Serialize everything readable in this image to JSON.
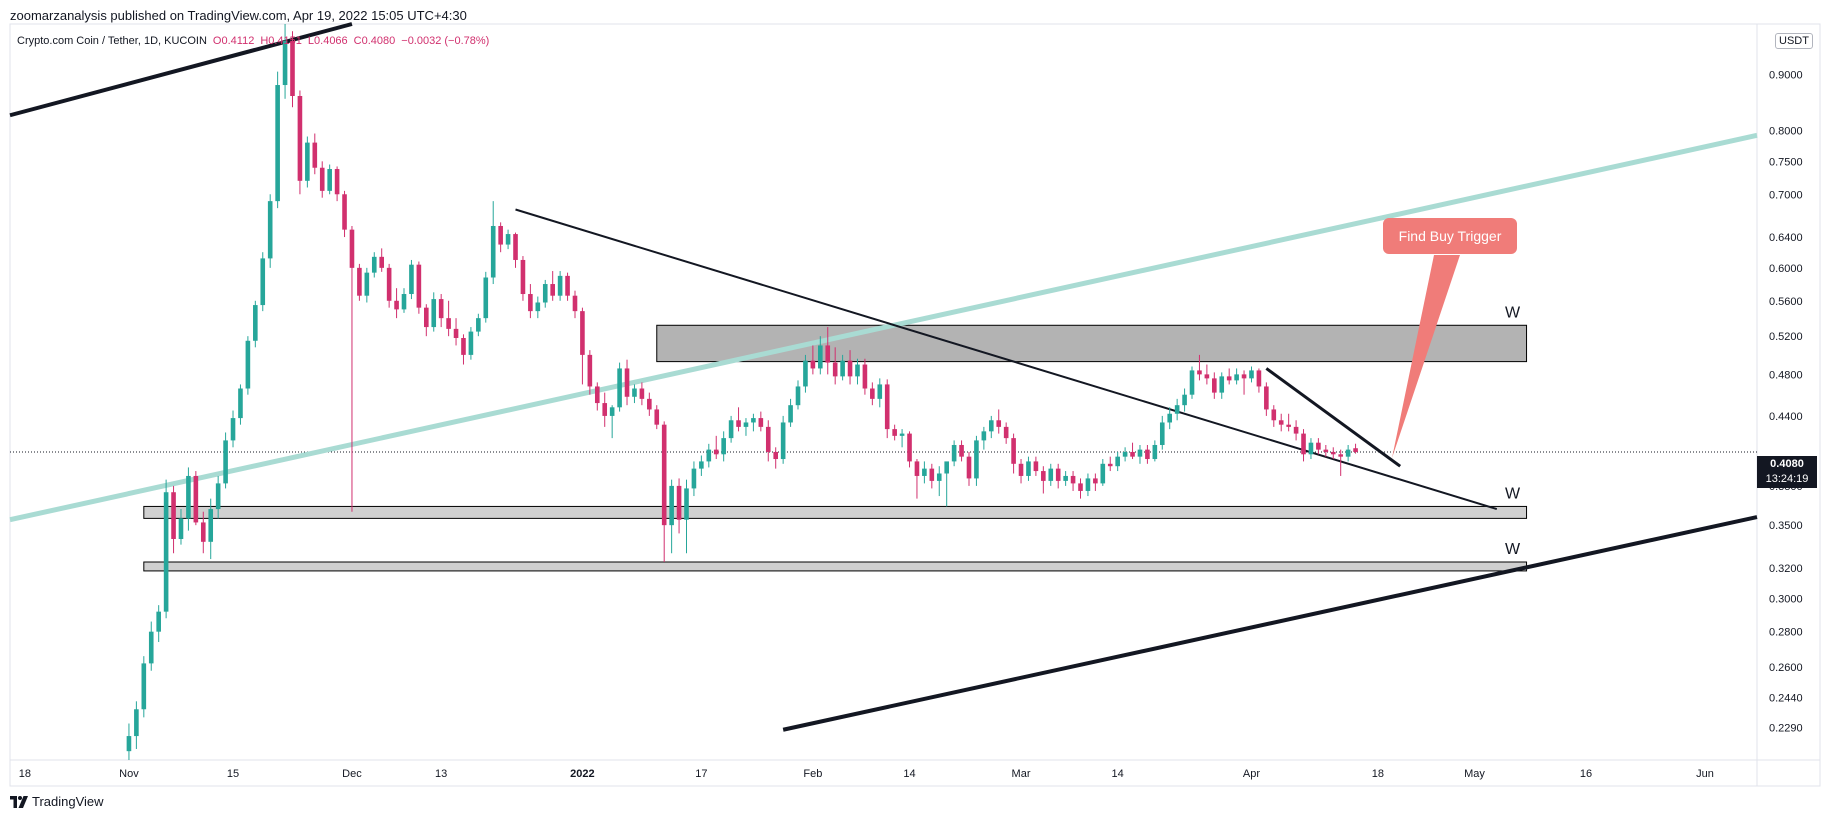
{
  "header": {
    "published_by": "zoomarzanalysis published on TradingView.com, Apr 19, 2022 15:05 UTC+4:30"
  },
  "legend": {
    "symbol": "Crypto.com Coin / Tether, 1D, KUCOIN",
    "open": "O0.4112",
    "high": "H0.4151",
    "low": "L0.4066",
    "close": "C0.4080",
    "change": "−0.0032 (−0.78%)"
  },
  "currency_badge": "USDT",
  "last_price": {
    "value": "0.4080",
    "countdown": "13:24:19"
  },
  "annotations": {
    "callout": "Find Buy Trigger",
    "zone_labels": [
      "W",
      "W",
      "W"
    ]
  },
  "footer": {
    "brand": "TradingView"
  },
  "colors": {
    "up": "#26a69a",
    "down": "#d1306e",
    "channel": "#131722",
    "teal_line": "#a9dbd3",
    "callout_bg": "#f07c79",
    "zone_fill": "#b3b3b3"
  },
  "chart_data": {
    "type": "candlestick",
    "scale": "log",
    "ylim": [
      0.214,
      1.0
    ],
    "y_ticks": [
      "0.9000",
      "0.8000",
      "0.7500",
      "0.7000",
      "0.6400",
      "0.6000",
      "0.5600",
      "0.5200",
      "0.4800",
      "0.4400",
      "0.4080",
      "0.3800",
      "0.3500",
      "0.3200",
      "0.3000",
      "0.2800",
      "0.2600",
      "0.2440",
      "0.2290"
    ],
    "x_ticks": [
      "18",
      "Nov",
      "15",
      "Dec",
      "13",
      "2022",
      "17",
      "Feb",
      "14",
      "Mar",
      "14",
      "Apr",
      "18",
      "May",
      "16",
      "Jun"
    ],
    "x_tick_dates": [
      "2021-10-18",
      "2021-11-01",
      "2021-11-15",
      "2021-12-01",
      "2021-12-13",
      "2022-01-01",
      "2022-01-17",
      "2022-02-01",
      "2022-02-14",
      "2022-03-01",
      "2022-03-14",
      "2022-04-01",
      "2022-04-18",
      "2022-05-01",
      "2022-05-16",
      "2022-06-01"
    ],
    "x_range": [
      "2021-10-16",
      "2022-06-08"
    ],
    "first_date": "2021-11-01",
    "candles": [
      {
        "o": 0.218,
        "h": 0.231,
        "l": 0.214,
        "c": 0.225
      },
      {
        "o": 0.225,
        "h": 0.242,
        "l": 0.219,
        "c": 0.238
      },
      {
        "o": 0.238,
        "h": 0.266,
        "l": 0.234,
        "c": 0.262
      },
      {
        "o": 0.262,
        "h": 0.286,
        "l": 0.258,
        "c": 0.28
      },
      {
        "o": 0.28,
        "h": 0.296,
        "l": 0.274,
        "c": 0.292
      },
      {
        "o": 0.292,
        "h": 0.385,
        "l": 0.288,
        "c": 0.375
      },
      {
        "o": 0.375,
        "h": 0.38,
        "l": 0.33,
        "c": 0.34
      },
      {
        "o": 0.34,
        "h": 0.362,
        "l": 0.336,
        "c": 0.355
      },
      {
        "o": 0.355,
        "h": 0.395,
        "l": 0.346,
        "c": 0.388
      },
      {
        "o": 0.388,
        "h": 0.392,
        "l": 0.35,
        "c": 0.352
      },
      {
        "o": 0.352,
        "h": 0.36,
        "l": 0.33,
        "c": 0.338
      },
      {
        "o": 0.338,
        "h": 0.37,
        "l": 0.326,
        "c": 0.362
      },
      {
        "o": 0.362,
        "h": 0.388,
        "l": 0.355,
        "c": 0.382
      },
      {
        "o": 0.382,
        "h": 0.425,
        "l": 0.378,
        "c": 0.418
      },
      {
        "o": 0.418,
        "h": 0.445,
        "l": 0.412,
        "c": 0.438
      },
      {
        "o": 0.438,
        "h": 0.47,
        "l": 0.432,
        "c": 0.466
      },
      {
        "o": 0.466,
        "h": 0.52,
        "l": 0.46,
        "c": 0.515
      },
      {
        "o": 0.515,
        "h": 0.56,
        "l": 0.508,
        "c": 0.555
      },
      {
        "o": 0.555,
        "h": 0.62,
        "l": 0.548,
        "c": 0.612
      },
      {
        "o": 0.612,
        "h": 0.7,
        "l": 0.6,
        "c": 0.69
      },
      {
        "o": 0.69,
        "h": 0.905,
        "l": 0.68,
        "c": 0.88
      },
      {
        "o": 0.88,
        "h": 1.0,
        "l": 0.855,
        "c": 0.965
      },
      {
        "o": 0.965,
        "h": 0.985,
        "l": 0.84,
        "c": 0.86
      },
      {
        "o": 0.86,
        "h": 0.87,
        "l": 0.7,
        "c": 0.72
      },
      {
        "o": 0.72,
        "h": 0.79,
        "l": 0.71,
        "c": 0.78
      },
      {
        "o": 0.78,
        "h": 0.795,
        "l": 0.73,
        "c": 0.74
      },
      {
        "o": 0.74,
        "h": 0.75,
        "l": 0.695,
        "c": 0.705
      },
      {
        "o": 0.705,
        "h": 0.745,
        "l": 0.7,
        "c": 0.738
      },
      {
        "o": 0.738,
        "h": 0.742,
        "l": 0.69,
        "c": 0.7
      },
      {
        "o": 0.7,
        "h": 0.705,
        "l": 0.64,
        "c": 0.65
      },
      {
        "o": 0.65,
        "h": 0.655,
        "l": 0.36,
        "c": 0.6
      },
      {
        "o": 0.6,
        "h": 0.605,
        "l": 0.56,
        "c": 0.566
      },
      {
        "o": 0.566,
        "h": 0.6,
        "l": 0.558,
        "c": 0.594
      },
      {
        "o": 0.594,
        "h": 0.62,
        "l": 0.588,
        "c": 0.614
      },
      {
        "o": 0.614,
        "h": 0.625,
        "l": 0.595,
        "c": 0.6
      },
      {
        "o": 0.6,
        "h": 0.605,
        "l": 0.552,
        "c": 0.56
      },
      {
        "o": 0.56,
        "h": 0.575,
        "l": 0.54,
        "c": 0.55
      },
      {
        "o": 0.55,
        "h": 0.575,
        "l": 0.546,
        "c": 0.568
      },
      {
        "o": 0.568,
        "h": 0.61,
        "l": 0.562,
        "c": 0.604
      },
      {
        "o": 0.604,
        "h": 0.608,
        "l": 0.545,
        "c": 0.552
      },
      {
        "o": 0.552,
        "h": 0.556,
        "l": 0.52,
        "c": 0.53
      },
      {
        "o": 0.53,
        "h": 0.57,
        "l": 0.525,
        "c": 0.562
      },
      {
        "o": 0.562,
        "h": 0.568,
        "l": 0.53,
        "c": 0.54
      },
      {
        "o": 0.54,
        "h": 0.56,
        "l": 0.52,
        "c": 0.528
      },
      {
        "o": 0.528,
        "h": 0.54,
        "l": 0.51,
        "c": 0.518
      },
      {
        "o": 0.518,
        "h": 0.522,
        "l": 0.49,
        "c": 0.5
      },
      {
        "o": 0.5,
        "h": 0.53,
        "l": 0.495,
        "c": 0.525
      },
      {
        "o": 0.525,
        "h": 0.545,
        "l": 0.52,
        "c": 0.54
      },
      {
        "o": 0.54,
        "h": 0.595,
        "l": 0.535,
        "c": 0.588
      },
      {
        "o": 0.588,
        "h": 0.69,
        "l": 0.58,
        "c": 0.655
      },
      {
        "o": 0.655,
        "h": 0.66,
        "l": 0.62,
        "c": 0.63
      },
      {
        "o": 0.63,
        "h": 0.65,
        "l": 0.624,
        "c": 0.644
      },
      {
        "o": 0.644,
        "h": 0.646,
        "l": 0.6,
        "c": 0.61
      },
      {
        "o": 0.61,
        "h": 0.615,
        "l": 0.56,
        "c": 0.568
      },
      {
        "o": 0.568,
        "h": 0.58,
        "l": 0.54,
        "c": 0.548
      },
      {
        "o": 0.548,
        "h": 0.565,
        "l": 0.54,
        "c": 0.558
      },
      {
        "o": 0.558,
        "h": 0.585,
        "l": 0.552,
        "c": 0.58
      },
      {
        "o": 0.58,
        "h": 0.596,
        "l": 0.56,
        "c": 0.566
      },
      {
        "o": 0.566,
        "h": 0.596,
        "l": 0.56,
        "c": 0.59
      },
      {
        "o": 0.59,
        "h": 0.594,
        "l": 0.56,
        "c": 0.566
      },
      {
        "o": 0.566,
        "h": 0.572,
        "l": 0.54,
        "c": 0.548
      },
      {
        "o": 0.548,
        "h": 0.552,
        "l": 0.47,
        "c": 0.5
      },
      {
        "o": 0.5,
        "h": 0.505,
        "l": 0.46,
        "c": 0.468
      },
      {
        "o": 0.468,
        "h": 0.472,
        "l": 0.445,
        "c": 0.452
      },
      {
        "o": 0.452,
        "h": 0.462,
        "l": 0.43,
        "c": 0.44
      },
      {
        "o": 0.44,
        "h": 0.45,
        "l": 0.42,
        "c": 0.448
      },
      {
        "o": 0.448,
        "h": 0.492,
        "l": 0.444,
        "c": 0.486
      },
      {
        "o": 0.486,
        "h": 0.495,
        "l": 0.45,
        "c": 0.458
      },
      {
        "o": 0.458,
        "h": 0.47,
        "l": 0.452,
        "c": 0.466
      },
      {
        "o": 0.466,
        "h": 0.472,
        "l": 0.45,
        "c": 0.456
      },
      {
        "o": 0.456,
        "h": 0.462,
        "l": 0.44,
        "c": 0.446
      },
      {
        "o": 0.446,
        "h": 0.45,
        "l": 0.428,
        "c": 0.432
      },
      {
        "o": 0.432,
        "h": 0.435,
        "l": 0.324,
        "c": 0.35
      },
      {
        "o": 0.35,
        "h": 0.385,
        "l": 0.33,
        "c": 0.38
      },
      {
        "o": 0.38,
        "h": 0.386,
        "l": 0.344,
        "c": 0.354
      },
      {
        "o": 0.354,
        "h": 0.385,
        "l": 0.33,
        "c": 0.378
      },
      {
        "o": 0.378,
        "h": 0.4,
        "l": 0.372,
        "c": 0.394
      },
      {
        "o": 0.394,
        "h": 0.405,
        "l": 0.388,
        "c": 0.4
      },
      {
        "o": 0.4,
        "h": 0.415,
        "l": 0.395,
        "c": 0.41
      },
      {
        "o": 0.41,
        "h": 0.422,
        "l": 0.402,
        "c": 0.406
      },
      {
        "o": 0.406,
        "h": 0.426,
        "l": 0.4,
        "c": 0.42
      },
      {
        "o": 0.42,
        "h": 0.44,
        "l": 0.416,
        "c": 0.436
      },
      {
        "o": 0.436,
        "h": 0.448,
        "l": 0.426,
        "c": 0.43
      },
      {
        "o": 0.43,
        "h": 0.438,
        "l": 0.422,
        "c": 0.434
      },
      {
        "o": 0.434,
        "h": 0.442,
        "l": 0.426,
        "c": 0.438
      },
      {
        "o": 0.438,
        "h": 0.444,
        "l": 0.426,
        "c": 0.43
      },
      {
        "o": 0.43,
        "h": 0.436,
        "l": 0.4,
        "c": 0.408
      },
      {
        "o": 0.408,
        "h": 0.412,
        "l": 0.394,
        "c": 0.402
      },
      {
        "o": 0.402,
        "h": 0.44,
        "l": 0.398,
        "c": 0.434
      },
      {
        "o": 0.434,
        "h": 0.456,
        "l": 0.43,
        "c": 0.45
      },
      {
        "o": 0.45,
        "h": 0.474,
        "l": 0.446,
        "c": 0.468
      },
      {
        "o": 0.468,
        "h": 0.5,
        "l": 0.462,
        "c": 0.494
      },
      {
        "o": 0.494,
        "h": 0.51,
        "l": 0.48,
        "c": 0.486
      },
      {
        "o": 0.486,
        "h": 0.52,
        "l": 0.48,
        "c": 0.51
      },
      {
        "o": 0.51,
        "h": 0.53,
        "l": 0.48,
        "c": 0.492
      },
      {
        "o": 0.492,
        "h": 0.508,
        "l": 0.47,
        "c": 0.478
      },
      {
        "o": 0.478,
        "h": 0.5,
        "l": 0.474,
        "c": 0.494
      },
      {
        "o": 0.494,
        "h": 0.505,
        "l": 0.47,
        "c": 0.478
      },
      {
        "o": 0.478,
        "h": 0.496,
        "l": 0.47,
        "c": 0.49
      },
      {
        "o": 0.49,
        "h": 0.496,
        "l": 0.46,
        "c": 0.466
      },
      {
        "o": 0.466,
        "h": 0.472,
        "l": 0.45,
        "c": 0.456
      },
      {
        "o": 0.456,
        "h": 0.476,
        "l": 0.448,
        "c": 0.47
      },
      {
        "o": 0.47,
        "h": 0.475,
        "l": 0.42,
        "c": 0.428
      },
      {
        "o": 0.428,
        "h": 0.432,
        "l": 0.418,
        "c": 0.422
      },
      {
        "o": 0.422,
        "h": 0.428,
        "l": 0.412,
        "c": 0.424
      },
      {
        "o": 0.424,
        "h": 0.426,
        "l": 0.395,
        "c": 0.4
      },
      {
        "o": 0.4,
        "h": 0.402,
        "l": 0.37,
        "c": 0.388
      },
      {
        "o": 0.388,
        "h": 0.4,
        "l": 0.382,
        "c": 0.394
      },
      {
        "o": 0.394,
        "h": 0.398,
        "l": 0.378,
        "c": 0.384
      },
      {
        "o": 0.384,
        "h": 0.396,
        "l": 0.372,
        "c": 0.39
      },
      {
        "o": 0.39,
        "h": 0.394,
        "l": 0.364,
        "c": 0.4
      },
      {
        "o": 0.4,
        "h": 0.418,
        "l": 0.396,
        "c": 0.414
      },
      {
        "o": 0.414,
        "h": 0.418,
        "l": 0.4,
        "c": 0.404
      },
      {
        "o": 0.404,
        "h": 0.408,
        "l": 0.38,
        "c": 0.386
      },
      {
        "o": 0.386,
        "h": 0.422,
        "l": 0.38,
        "c": 0.418
      },
      {
        "o": 0.418,
        "h": 0.43,
        "l": 0.41,
        "c": 0.426
      },
      {
        "o": 0.426,
        "h": 0.44,
        "l": 0.42,
        "c": 0.436
      },
      {
        "o": 0.436,
        "h": 0.446,
        "l": 0.424,
        "c": 0.43
      },
      {
        "o": 0.43,
        "h": 0.434,
        "l": 0.415,
        "c": 0.42
      },
      {
        "o": 0.42,
        "h": 0.424,
        "l": 0.39,
        "c": 0.398
      },
      {
        "o": 0.398,
        "h": 0.402,
        "l": 0.382,
        "c": 0.388
      },
      {
        "o": 0.388,
        "h": 0.404,
        "l": 0.384,
        "c": 0.4
      },
      {
        "o": 0.4,
        "h": 0.404,
        "l": 0.388,
        "c": 0.392
      },
      {
        "o": 0.392,
        "h": 0.396,
        "l": 0.374,
        "c": 0.384
      },
      {
        "o": 0.384,
        "h": 0.398,
        "l": 0.38,
        "c": 0.394
      },
      {
        "o": 0.394,
        "h": 0.398,
        "l": 0.378,
        "c": 0.384
      },
      {
        "o": 0.384,
        "h": 0.392,
        "l": 0.38,
        "c": 0.388
      },
      {
        "o": 0.388,
        "h": 0.392,
        "l": 0.376,
        "c": 0.382
      },
      {
        "o": 0.382,
        "h": 0.386,
        "l": 0.37,
        "c": 0.376
      },
      {
        "o": 0.376,
        "h": 0.39,
        "l": 0.372,
        "c": 0.386
      },
      {
        "o": 0.386,
        "h": 0.39,
        "l": 0.376,
        "c": 0.382
      },
      {
        "o": 0.382,
        "h": 0.402,
        "l": 0.38,
        "c": 0.398
      },
      {
        "o": 0.398,
        "h": 0.404,
        "l": 0.392,
        "c": 0.396
      },
      {
        "o": 0.396,
        "h": 0.408,
        "l": 0.392,
        "c": 0.404
      },
      {
        "o": 0.404,
        "h": 0.412,
        "l": 0.4,
        "c": 0.408
      },
      {
        "o": 0.408,
        "h": 0.416,
        "l": 0.402,
        "c": 0.404
      },
      {
        "o": 0.404,
        "h": 0.414,
        "l": 0.398,
        "c": 0.41
      },
      {
        "o": 0.41,
        "h": 0.414,
        "l": 0.398,
        "c": 0.402
      },
      {
        "o": 0.402,
        "h": 0.418,
        "l": 0.4,
        "c": 0.414
      },
      {
        "o": 0.414,
        "h": 0.44,
        "l": 0.41,
        "c": 0.434
      },
      {
        "o": 0.434,
        "h": 0.448,
        "l": 0.428,
        "c": 0.442
      },
      {
        "o": 0.442,
        "h": 0.456,
        "l": 0.436,
        "c": 0.45
      },
      {
        "o": 0.45,
        "h": 0.466,
        "l": 0.444,
        "c": 0.46
      },
      {
        "o": 0.46,
        "h": 0.488,
        "l": 0.456,
        "c": 0.484
      },
      {
        "o": 0.484,
        "h": 0.5,
        "l": 0.474,
        "c": 0.48
      },
      {
        "o": 0.48,
        "h": 0.49,
        "l": 0.47,
        "c": 0.476
      },
      {
        "o": 0.476,
        "h": 0.482,
        "l": 0.456,
        "c": 0.462
      },
      {
        "o": 0.462,
        "h": 0.482,
        "l": 0.456,
        "c": 0.478
      },
      {
        "o": 0.478,
        "h": 0.486,
        "l": 0.47,
        "c": 0.474
      },
      {
        "o": 0.474,
        "h": 0.486,
        "l": 0.47,
        "c": 0.48
      },
      {
        "o": 0.48,
        "h": 0.484,
        "l": 0.46,
        "c": 0.476
      },
      {
        "o": 0.476,
        "h": 0.488,
        "l": 0.472,
        "c": 0.484
      },
      {
        "o": 0.484,
        "h": 0.486,
        "l": 0.462,
        "c": 0.468
      },
      {
        "o": 0.468,
        "h": 0.472,
        "l": 0.44,
        "c": 0.446
      },
      {
        "o": 0.446,
        "h": 0.45,
        "l": 0.43,
        "c": 0.436
      },
      {
        "o": 0.436,
        "h": 0.442,
        "l": 0.426,
        "c": 0.432
      },
      {
        "o": 0.432,
        "h": 0.442,
        "l": 0.426,
        "c": 0.43
      },
      {
        "o": 0.43,
        "h": 0.436,
        "l": 0.418,
        "c": 0.424
      },
      {
        "o": 0.424,
        "h": 0.428,
        "l": 0.4,
        "c": 0.406
      },
      {
        "o": 0.406,
        "h": 0.42,
        "l": 0.402,
        "c": 0.416
      },
      {
        "o": 0.416,
        "h": 0.42,
        "l": 0.406,
        "c": 0.41
      },
      {
        "o": 0.41,
        "h": 0.414,
        "l": 0.404,
        "c": 0.408
      },
      {
        "o": 0.408,
        "h": 0.412,
        "l": 0.402,
        "c": 0.406
      },
      {
        "o": 0.406,
        "h": 0.41,
        "l": 0.388,
        "c": 0.404
      },
      {
        "o": 0.404,
        "h": 0.414,
        "l": 0.4,
        "c": 0.41
      },
      {
        "o": 0.4112,
        "h": 0.4151,
        "l": 0.4066,
        "c": 0.408
      }
    ],
    "zones": [
      {
        "label": "W",
        "top": 0.532,
        "bottom": 0.493,
        "start": "2022-01-11",
        "end": "2022-05-08"
      },
      {
        "label": "W",
        "top": 0.364,
        "bottom": 0.355,
        "start": "2021-11-03",
        "end": "2022-05-08"
      },
      {
        "label": "W",
        "top": 0.324,
        "bottom": 0.318,
        "start": "2021-11-03",
        "end": "2022-05-08"
      }
    ],
    "trendlines": [
      {
        "kind": "channel-top",
        "from": [
          "2021-10-16",
          0.826
        ],
        "to": [
          "2021-12-01",
          1.0
        ]
      },
      {
        "kind": "channel-bottom",
        "from": [
          "2022-01-28",
          0.228
        ],
        "to": [
          "2022-06-08",
          0.356
        ]
      },
      {
        "kind": "teal-diagonal",
        "from": [
          "2021-10-16",
          0.354
        ],
        "to": [
          "2022-06-08",
          0.792
        ]
      },
      {
        "kind": "descending",
        "from": [
          "2021-12-23",
          0.678
        ],
        "to": [
          "2022-05-04",
          0.362
        ]
      },
      {
        "kind": "wedge",
        "from": [
          "2022-04-03",
          0.486
        ],
        "to": [
          "2022-04-21",
          0.396
        ]
      }
    ]
  }
}
